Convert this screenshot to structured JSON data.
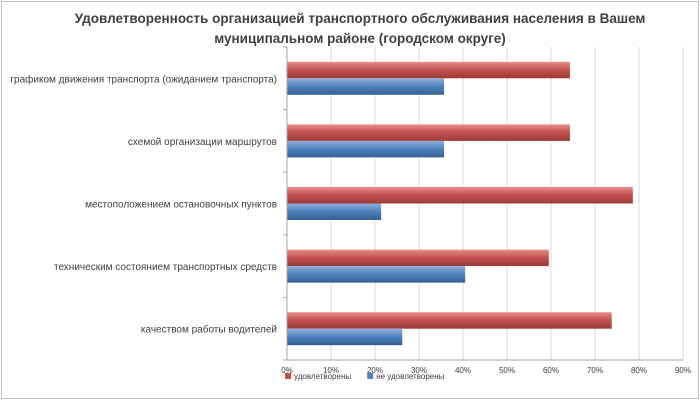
{
  "chart_data": {
    "type": "bar",
    "orientation": "horizontal",
    "title_line1": "Удовлетворенность организацией транспортного обслуживания населения в Вашем",
    "title_line2": "муниципальном районе (городском округе)",
    "categories": [
      "графиком движения транспорта (ожиданием транспорта)",
      "схемой организации маршрутов",
      "местоположением остановочных пунктов",
      "техническим состоянием транспортных средств",
      "качеством работы водителей"
    ],
    "series": [
      {
        "name": "удовлетворены",
        "values": [
          64.3,
          64.3,
          78.6,
          59.5,
          73.8
        ],
        "color": "#c0504d"
      },
      {
        "name": "не удовлетворены",
        "values": [
          35.7,
          35.7,
          21.4,
          40.5,
          26.2
        ],
        "color": "#4f81bd"
      }
    ],
    "x_ticks": [
      "0%",
      "10%",
      "20%",
      "30%",
      "40%",
      "50%",
      "60%",
      "70%",
      "80%",
      "90%"
    ],
    "xlim": [
      0,
      90
    ],
    "grid": true,
    "legend_position": "bottom-left"
  }
}
